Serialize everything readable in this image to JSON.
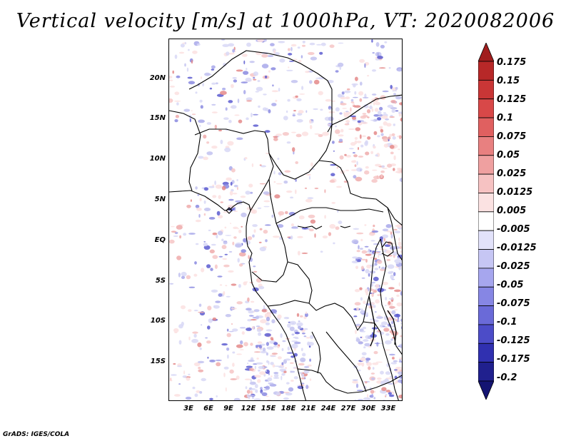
{
  "title": "Vertical velocity [m/s] at 1000hPa, VT: 2020082006",
  "footer": "GrADS: IGES/COLA",
  "map": {
    "lat_labels": [
      "20N",
      "15N",
      "10N",
      "5N",
      "EQ",
      "5S",
      "10S",
      "15S"
    ],
    "lon_labels": [
      "3E",
      "6E",
      "9E",
      "12E",
      "15E",
      "18E",
      "21E",
      "24E",
      "27E",
      "30E",
      "33E"
    ],
    "lat_values": [
      20,
      15,
      10,
      5,
      0,
      -5,
      -10,
      -15
    ],
    "lon_values": [
      3,
      6,
      9,
      12,
      15,
      18,
      21,
      24,
      27,
      30,
      33
    ],
    "lat_range": [
      -20,
      25
    ],
    "lon_range": [
      0.5,
      35.5
    ],
    "field": "vertical velocity"
  },
  "colorbar": {
    "labels": [
      "0.175",
      "0.15",
      "0.125",
      "0.1",
      "0.075",
      "0.05",
      "0.025",
      "0.0125",
      "0.005",
      "-0.005",
      "-0.0125",
      "-0.025",
      "-0.05",
      "-0.075",
      "-0.1",
      "-0.125",
      "-0.175",
      "-0.2"
    ],
    "colors": [
      "#a11d1d",
      "#b72828",
      "#c93636",
      "#d84848",
      "#e06060",
      "#e88080",
      "#efa0a0",
      "#f6c2c2",
      "#fbe2e2",
      "#ffffff",
      "#e2e2fa",
      "#c6c6f4",
      "#a6a6ee",
      "#8686e4",
      "#6a6ad8",
      "#4c4cc8",
      "#3030b0",
      "#20208e",
      "#141472"
    ]
  }
}
